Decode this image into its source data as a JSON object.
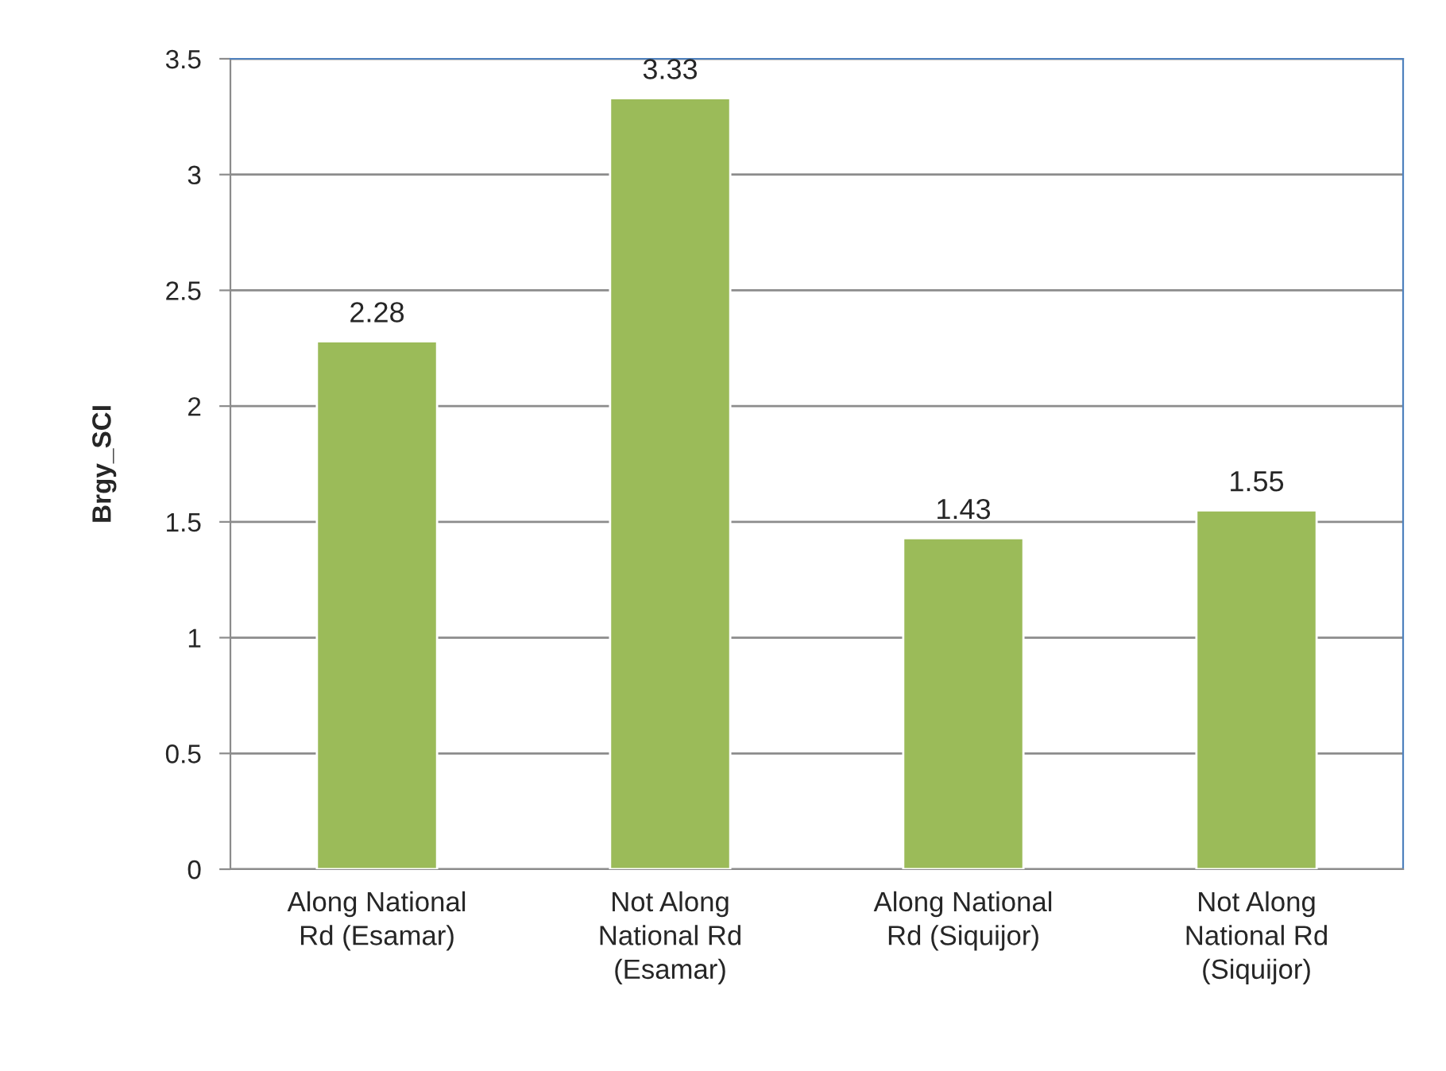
{
  "chart_data": {
    "type": "bar",
    "ylabel": "Brgy_SCI",
    "categories": [
      "Along National\nRd (Esamar)",
      "Not Along\nNational Rd\n(Esamar)",
      "Along National\nRd (Siquijor)",
      "Not Along\nNational Rd\n(Siquijor)"
    ],
    "values": [
      2.28,
      3.33,
      1.43,
      1.55
    ],
    "color": "#9bbb59",
    "ylim": [
      0,
      3.5
    ],
    "yticks": [
      0,
      0.5,
      1,
      1.5,
      2,
      2.5,
      3,
      3.5
    ],
    "grid": "y",
    "data_labels": true
  }
}
